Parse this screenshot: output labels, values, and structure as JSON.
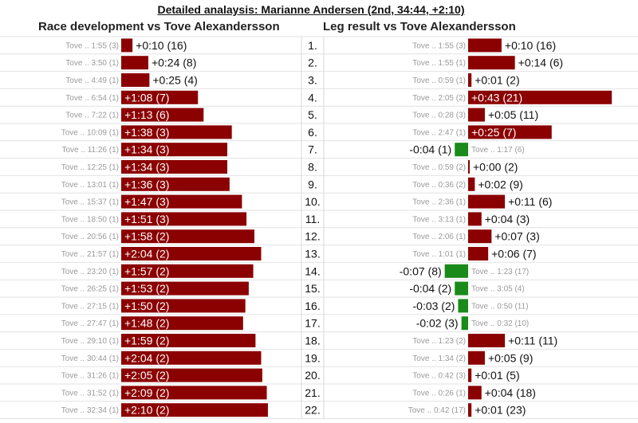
{
  "title": "Detailed analaysis: Marianne Andersen (2nd, 34:44, +2:10)",
  "colors": {
    "behind": "#8b0000",
    "ahead": "#1a8a1a"
  },
  "chart_data": [
    {
      "type": "bar",
      "title": "Race development vs Tove Alexandersson",
      "categories": [
        "1.",
        "2.",
        "3.",
        "4.",
        "5.",
        "6.",
        "7.",
        "8.",
        "9.",
        "10.",
        "11.",
        "12.",
        "13.",
        "14.",
        "15.",
        "16.",
        "17.",
        "18.",
        "19.",
        "20.",
        "21.",
        "22."
      ],
      "values_seconds": [
        10,
        24,
        25,
        68,
        73,
        98,
        94,
        94,
        96,
        107,
        111,
        118,
        124,
        117,
        113,
        110,
        108,
        119,
        124,
        125,
        129,
        130
      ],
      "value_labels": [
        "+0:10 (16)",
        "+0:24 (8)",
        "+0:25 (4)",
        "+1:08 (7)",
        "+1:13 (6)",
        "+1:38 (3)",
        "+1:34 (3)",
        "+1:34 (3)",
        "+1:36 (3)",
        "+1:47 (3)",
        "+1:51 (3)",
        "+1:58 (2)",
        "+2:04 (2)",
        "+1:57 (2)",
        "+1:53 (2)",
        "+1:50 (2)",
        "+1:48 (2)",
        "+1:59 (2)",
        "+2:04 (2)",
        "+2:05 (2)",
        "+2:09 (2)",
        "+2:10 (2)"
      ],
      "reference_labels": [
        "Tove .. 1:55 (3)",
        "Tove .. 3:50 (1)",
        "Tove .. 4:49 (1)",
        "Tove .. 6:54 (1)",
        "Tove .. 7:22 (1)",
        "Tove .. 10:09 (1)",
        "Tove .. 11:26 (1)",
        "Tove .. 12:25 (1)",
        "Tove .. 13:01 (1)",
        "Tove .. 15:37 (1)",
        "Tove .. 18:50 (1)",
        "Tove .. 20:56 (1)",
        "Tove .. 21:57 (1)",
        "Tove .. 23:20 (1)",
        "Tove .. 26:25 (1)",
        "Tove .. 27:15 (1)",
        "Tove .. 27:47 (1)",
        "Tove .. 29:10 (1)",
        "Tove .. 30:44 (1)",
        "Tove .. 31:26 (1)",
        "Tove .. 31:52 (1)",
        "Tove .. 32:34 (1)"
      ]
    },
    {
      "type": "bar",
      "title": "Leg result vs Tove Alexandersson",
      "categories": [
        "1.",
        "2.",
        "3.",
        "4.",
        "5.",
        "6.",
        "7.",
        "8.",
        "9.",
        "10.",
        "11.",
        "12.",
        "13.",
        "14.",
        "15.",
        "16.",
        "17.",
        "18.",
        "19.",
        "20.",
        "21.",
        "22."
      ],
      "values_seconds": [
        10,
        14,
        1,
        43,
        5,
        25,
        -4,
        0,
        2,
        11,
        4,
        7,
        6,
        -7,
        -4,
        -3,
        -2,
        11,
        5,
        1,
        4,
        1
      ],
      "value_labels": [
        "+0:10 (16)",
        "+0:14 (6)",
        "+0:01 (2)",
        "+0:43 (21)",
        "+0:05 (11)",
        "+0:25 (7)",
        "-0:04 (1)",
        "+0:00 (2)",
        "+0:02 (9)",
        "+0:11 (6)",
        "+0:04 (3)",
        "+0:07 (3)",
        "+0:06 (7)",
        "-0:07 (8)",
        "-0:04 (2)",
        "-0:03 (2)",
        "-0:02 (3)",
        "+0:11 (11)",
        "+0:05 (9)",
        "+0:01 (5)",
        "+0:04 (18)",
        "+0:01 (23)"
      ],
      "reference_labels": [
        "Tove .. 1:55 (3)",
        "Tove .. 1:55 (1)",
        "Tove .. 0:59 (1)",
        "Tove .. 2:05 (2)",
        "Tove .. 0:28 (3)",
        "Tove .. 2:47 (1)",
        "Tove .. 1:17 (6)",
        "Tove .. 0:59 (2)",
        "Tove .. 0:36 (2)",
        "Tove .. 2:36 (1)",
        "Tove .. 3:13 (1)",
        "Tove .. 2:06 (1)",
        "Tove .. 1:01 (1)",
        "Tove .. 1:23 (17)",
        "Tove .. 3:05 (4)",
        "Tove .. 0:50 (11)",
        "Tove .. 0:32 (10)",
        "Tove .. 1:23 (2)",
        "Tove .. 1:34 (2)",
        "Tove .. 0:42 (3)",
        "Tove .. 0:26 (1)",
        "Tove .. 0:42 (17)"
      ]
    }
  ]
}
